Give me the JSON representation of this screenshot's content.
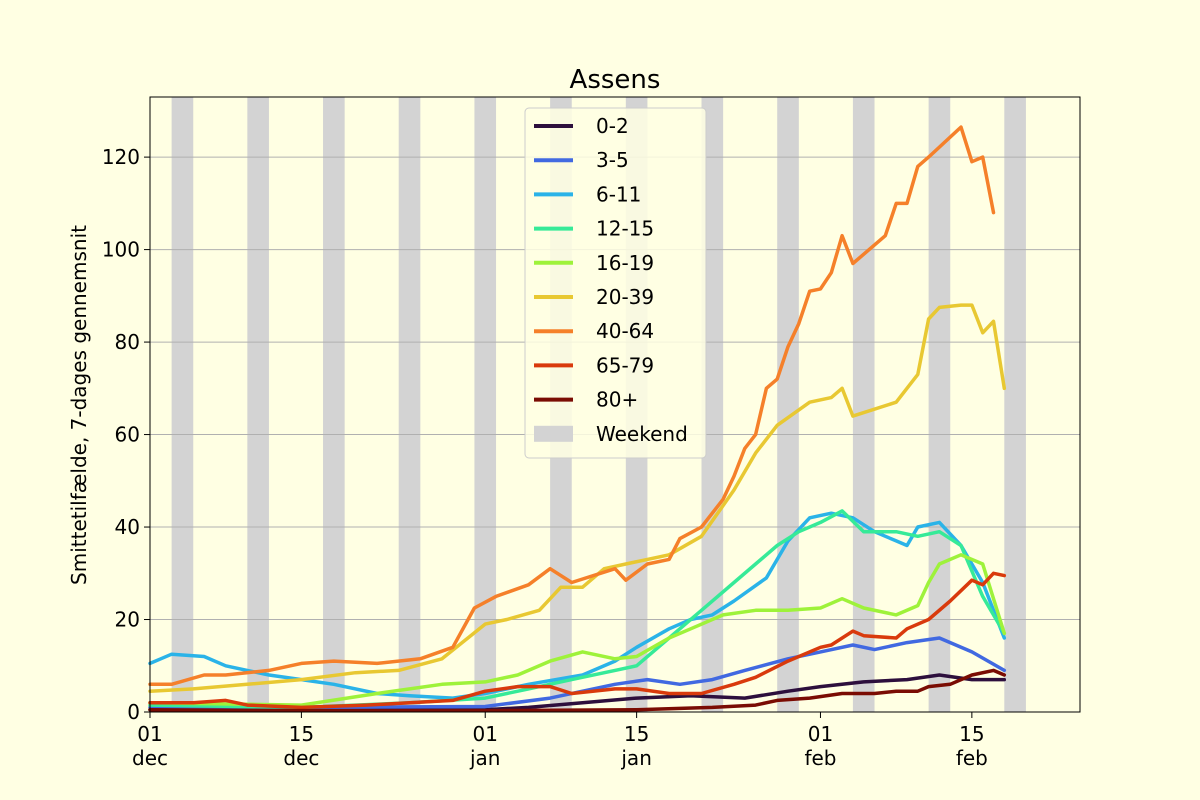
{
  "chart_data": {
    "type": "line",
    "title": "Assens",
    "ylabel": "Smittetilfælde, 7-dages gennemsnit",
    "xlabel": "",
    "x_start": "2020-12-01",
    "x_end": "2021-02-25",
    "ylim": [
      0,
      133
    ],
    "yticks": [
      0,
      20,
      40,
      60,
      80,
      100,
      120
    ],
    "xticks": [
      {
        "date": "2020-12-01",
        "day": "01",
        "month": "dec"
      },
      {
        "date": "2020-12-15",
        "day": "15",
        "month": "dec"
      },
      {
        "date": "2021-01-01",
        "day": "01",
        "month": "jan"
      },
      {
        "date": "2021-01-15",
        "day": "15",
        "month": "jan"
      },
      {
        "date": "2021-02-01",
        "day": "01",
        "month": "feb"
      },
      {
        "date": "2021-02-15",
        "day": "15",
        "month": "feb"
      }
    ],
    "grid": "horizontal",
    "legend_position": "top-center",
    "weekend_label": "Weekend",
    "weekend_color": "#d3d3d3",
    "weekends": [
      [
        "2020-12-03",
        "2020-12-05"
      ],
      [
        "2020-12-10",
        "2020-12-12"
      ],
      [
        "2020-12-17",
        "2020-12-19"
      ],
      [
        "2020-12-24",
        "2020-12-26"
      ],
      [
        "2020-12-31",
        "2021-01-02"
      ],
      [
        "2021-01-07",
        "2021-01-09"
      ],
      [
        "2021-01-14",
        "2021-01-16"
      ],
      [
        "2021-01-21",
        "2021-01-23"
      ],
      [
        "2021-01-28",
        "2021-01-30"
      ],
      [
        "2021-02-04",
        "2021-02-06"
      ],
      [
        "2021-02-11",
        "2021-02-13"
      ],
      [
        "2021-02-18",
        "2021-02-20"
      ]
    ],
    "series": [
      {
        "name": "0-2",
        "color": "#2d0f3d",
        "points": [
          [
            "2020-12-01",
            0.5
          ],
          [
            "2020-12-15",
            0.3
          ],
          [
            "2021-01-01",
            0.5
          ],
          [
            "2021-01-05",
            1
          ],
          [
            "2021-01-10",
            2
          ],
          [
            "2021-01-15",
            3
          ],
          [
            "2021-01-20",
            3.5
          ],
          [
            "2021-01-25",
            3
          ],
          [
            "2021-01-29",
            4.5
          ],
          [
            "2021-02-01",
            5.5
          ],
          [
            "2021-02-05",
            6.5
          ],
          [
            "2021-02-09",
            7
          ],
          [
            "2021-02-12",
            8
          ],
          [
            "2021-02-15",
            7
          ],
          [
            "2021-02-18",
            7
          ]
        ]
      },
      {
        "name": "3-5",
        "color": "#4169e1",
        "points": [
          [
            "2020-12-01",
            1
          ],
          [
            "2020-12-15",
            1
          ],
          [
            "2021-01-01",
            1.2
          ],
          [
            "2021-01-07",
            3
          ],
          [
            "2021-01-10",
            4.5
          ],
          [
            "2021-01-13",
            6
          ],
          [
            "2021-01-16",
            7
          ],
          [
            "2021-01-19",
            6
          ],
          [
            "2021-01-22",
            7
          ],
          [
            "2021-01-25",
            9
          ],
          [
            "2021-01-29",
            11.5
          ],
          [
            "2021-02-01",
            13
          ],
          [
            "2021-02-04",
            14.5
          ],
          [
            "2021-02-06",
            13.5
          ],
          [
            "2021-02-09",
            15
          ],
          [
            "2021-02-12",
            16
          ],
          [
            "2021-02-15",
            13
          ],
          [
            "2021-02-18",
            9
          ]
        ]
      },
      {
        "name": "6-11",
        "color": "#2ab3e8",
        "points": [
          [
            "2020-12-01",
            10.5
          ],
          [
            "2020-12-02",
            11.5
          ],
          [
            "2020-12-03",
            12.5
          ],
          [
            "2020-12-06",
            12
          ],
          [
            "2020-12-08",
            10
          ],
          [
            "2020-12-10",
            9
          ],
          [
            "2020-12-12",
            8
          ],
          [
            "2020-12-15",
            7
          ],
          [
            "2020-12-18",
            6
          ],
          [
            "2020-12-22",
            4
          ],
          [
            "2020-12-25",
            3.5
          ],
          [
            "2020-12-29",
            3
          ],
          [
            "2021-01-01",
            4
          ],
          [
            "2021-01-05",
            6
          ],
          [
            "2021-01-10",
            8
          ],
          [
            "2021-01-13",
            11
          ],
          [
            "2021-01-15",
            14
          ],
          [
            "2021-01-18",
            18
          ],
          [
            "2021-01-20",
            20
          ],
          [
            "2021-01-22",
            21
          ],
          [
            "2021-01-24",
            24
          ],
          [
            "2021-01-27",
            29
          ],
          [
            "2021-01-29",
            37
          ],
          [
            "2021-01-31",
            42
          ],
          [
            "2021-02-02",
            43
          ],
          [
            "2021-02-04",
            42
          ],
          [
            "2021-02-06",
            39
          ],
          [
            "2021-02-08",
            37
          ],
          [
            "2021-02-09",
            36
          ],
          [
            "2021-02-10",
            40
          ],
          [
            "2021-02-12",
            41
          ],
          [
            "2021-02-14",
            36
          ],
          [
            "2021-02-16",
            28
          ],
          [
            "2021-02-18",
            16
          ]
        ]
      },
      {
        "name": "12-15",
        "color": "#36ea98",
        "points": [
          [
            "2020-12-01",
            1.5
          ],
          [
            "2020-12-15",
            1
          ],
          [
            "2020-12-25",
            2
          ],
          [
            "2021-01-01",
            3
          ],
          [
            "2021-01-05",
            5
          ],
          [
            "2021-01-09",
            7
          ],
          [
            "2021-01-13",
            9
          ],
          [
            "2021-01-15",
            10
          ],
          [
            "2021-01-18",
            16
          ],
          [
            "2021-01-21",
            22
          ],
          [
            "2021-01-24",
            28
          ],
          [
            "2021-01-26",
            32
          ],
          [
            "2021-01-28",
            36
          ],
          [
            "2021-01-30",
            39
          ],
          [
            "2021-02-01",
            41
          ],
          [
            "2021-02-03",
            43.5
          ],
          [
            "2021-02-05",
            39
          ],
          [
            "2021-02-08",
            39
          ],
          [
            "2021-02-10",
            38
          ],
          [
            "2021-02-12",
            39
          ],
          [
            "2021-02-14",
            36
          ],
          [
            "2021-02-16",
            25
          ],
          [
            "2021-02-18",
            17
          ]
        ]
      },
      {
        "name": "16-19",
        "color": "#9ef23a",
        "points": [
          [
            "2020-12-01",
            2
          ],
          [
            "2020-12-15",
            1.5
          ],
          [
            "2020-12-22",
            4
          ],
          [
            "2020-12-28",
            6
          ],
          [
            "2021-01-01",
            6.5
          ],
          [
            "2021-01-04",
            8
          ],
          [
            "2021-01-07",
            11
          ],
          [
            "2021-01-10",
            13
          ],
          [
            "2021-01-13",
            11.5
          ],
          [
            "2021-01-15",
            12
          ],
          [
            "2021-01-18",
            16
          ],
          [
            "2021-01-20",
            18
          ],
          [
            "2021-01-23",
            21
          ],
          [
            "2021-01-26",
            22
          ],
          [
            "2021-01-29",
            22
          ],
          [
            "2021-02-01",
            22.5
          ],
          [
            "2021-02-03",
            24.5
          ],
          [
            "2021-02-05",
            22.5
          ],
          [
            "2021-02-08",
            21
          ],
          [
            "2021-02-10",
            23
          ],
          [
            "2021-02-11",
            28
          ],
          [
            "2021-02-12",
            32
          ],
          [
            "2021-02-14",
            34
          ],
          [
            "2021-02-16",
            32
          ],
          [
            "2021-02-18",
            17
          ]
        ]
      },
      {
        "name": "20-39",
        "color": "#e8c832",
        "points": [
          [
            "2020-12-01",
            4.5
          ],
          [
            "2020-12-05",
            5
          ],
          [
            "2020-12-10",
            6
          ],
          [
            "2020-12-15",
            7
          ],
          [
            "2020-12-20",
            8.5
          ],
          [
            "2020-12-24",
            9
          ],
          [
            "2020-12-28",
            11.5
          ],
          [
            "2021-01-01",
            19
          ],
          [
            "2021-01-03",
            20
          ],
          [
            "2021-01-06",
            22
          ],
          [
            "2021-01-08",
            27
          ],
          [
            "2021-01-10",
            27
          ],
          [
            "2021-01-12",
            31
          ],
          [
            "2021-01-14",
            32
          ],
          [
            "2021-01-16",
            33
          ],
          [
            "2021-01-18",
            34
          ],
          [
            "2021-01-21",
            38
          ],
          [
            "2021-01-24",
            48
          ],
          [
            "2021-01-26",
            56
          ],
          [
            "2021-01-28",
            62
          ],
          [
            "2021-01-31",
            67
          ],
          [
            "2021-02-02",
            68
          ],
          [
            "2021-02-03",
            70
          ],
          [
            "2021-02-04",
            64
          ],
          [
            "2021-02-08",
            67
          ],
          [
            "2021-02-10",
            73
          ],
          [
            "2021-02-11",
            85
          ],
          [
            "2021-02-12",
            87.5
          ],
          [
            "2021-02-14",
            88
          ],
          [
            "2021-02-15",
            88
          ],
          [
            "2021-02-16",
            82
          ],
          [
            "2021-02-17",
            84.5
          ],
          [
            "2021-02-18",
            70
          ]
        ]
      },
      {
        "name": "40-64",
        "color": "#f5802a",
        "points": [
          [
            "2020-12-01",
            6
          ],
          [
            "2020-12-03",
            6
          ],
          [
            "2020-12-06",
            8
          ],
          [
            "2020-12-08",
            8
          ],
          [
            "2020-12-12",
            9
          ],
          [
            "2020-12-15",
            10.5
          ],
          [
            "2020-12-18",
            11
          ],
          [
            "2020-12-22",
            10.5
          ],
          [
            "2020-12-26",
            11.5
          ],
          [
            "2020-12-29",
            14
          ],
          [
            "2020-12-31",
            22.5
          ],
          [
            "2021-01-02",
            25
          ],
          [
            "2021-01-05",
            27.5
          ],
          [
            "2021-01-07",
            31
          ],
          [
            "2021-01-09",
            28
          ],
          [
            "2021-01-13",
            31
          ],
          [
            "2021-01-14",
            28.5
          ],
          [
            "2021-01-16",
            32
          ],
          [
            "2021-01-18",
            33
          ],
          [
            "2021-01-19",
            37.5
          ],
          [
            "2021-01-21",
            40
          ],
          [
            "2021-01-23",
            46
          ],
          [
            "2021-01-24",
            51
          ],
          [
            "2021-01-25",
            57
          ],
          [
            "2021-01-26",
            60
          ],
          [
            "2021-01-27",
            70
          ],
          [
            "2021-01-28",
            72
          ],
          [
            "2021-01-29",
            79
          ],
          [
            "2021-01-30",
            84
          ],
          [
            "2021-01-31",
            91
          ],
          [
            "2021-02-01",
            91.5
          ],
          [
            "2021-02-02",
            95
          ],
          [
            "2021-02-03",
            103
          ],
          [
            "2021-02-04",
            97
          ],
          [
            "2021-02-07",
            103
          ],
          [
            "2021-02-08",
            110
          ],
          [
            "2021-02-09",
            110
          ],
          [
            "2021-02-10",
            118
          ],
          [
            "2021-02-11",
            120
          ],
          [
            "2021-02-14",
            126.5
          ],
          [
            "2021-02-15",
            119
          ],
          [
            "2021-02-16",
            120
          ],
          [
            "2021-02-17",
            108
          ]
        ]
      },
      {
        "name": "65-79",
        "color": "#d93a0c",
        "points": [
          [
            "2020-12-01",
            2
          ],
          [
            "2020-12-05",
            2
          ],
          [
            "2020-12-08",
            2.5
          ],
          [
            "2020-12-10",
            1.5
          ],
          [
            "2020-12-15",
            1
          ],
          [
            "2020-12-21",
            1.5
          ],
          [
            "2020-12-25",
            2
          ],
          [
            "2020-12-29",
            2.5
          ],
          [
            "2021-01-01",
            4.5
          ],
          [
            "2021-01-04",
            5.5
          ],
          [
            "2021-01-07",
            5.5
          ],
          [
            "2021-01-09",
            4
          ],
          [
            "2021-01-13",
            5
          ],
          [
            "2021-01-15",
            5
          ],
          [
            "2021-01-18",
            4
          ],
          [
            "2021-01-21",
            4
          ],
          [
            "2021-01-24",
            6
          ],
          [
            "2021-01-26",
            7.5
          ],
          [
            "2021-01-29",
            11
          ],
          [
            "2021-02-01",
            14
          ],
          [
            "2021-02-02",
            14.5
          ],
          [
            "2021-02-04",
            17.5
          ],
          [
            "2021-02-05",
            16.5
          ],
          [
            "2021-02-08",
            16
          ],
          [
            "2021-02-09",
            18
          ],
          [
            "2021-02-11",
            20
          ],
          [
            "2021-02-13",
            24
          ],
          [
            "2021-02-15",
            28.5
          ],
          [
            "2021-02-16",
            27.5
          ],
          [
            "2021-02-17",
            30
          ],
          [
            "2021-02-18",
            29.5
          ]
        ]
      },
      {
        "name": "80+",
        "color": "#7a0c03",
        "points": [
          [
            "2020-12-01",
            0.5
          ],
          [
            "2020-12-15",
            0.3
          ],
          [
            "2021-01-01",
            0.3
          ],
          [
            "2021-01-15",
            0.5
          ],
          [
            "2021-01-22",
            1
          ],
          [
            "2021-01-26",
            1.5
          ],
          [
            "2021-01-28",
            2.5
          ],
          [
            "2021-01-31",
            3
          ],
          [
            "2021-02-03",
            4
          ],
          [
            "2021-02-06",
            4
          ],
          [
            "2021-02-08",
            4.5
          ],
          [
            "2021-02-10",
            4.5
          ],
          [
            "2021-02-11",
            5.5
          ],
          [
            "2021-02-13",
            6
          ],
          [
            "2021-02-15",
            8
          ],
          [
            "2021-02-17",
            9
          ],
          [
            "2021-02-18",
            8
          ]
        ]
      }
    ]
  }
}
